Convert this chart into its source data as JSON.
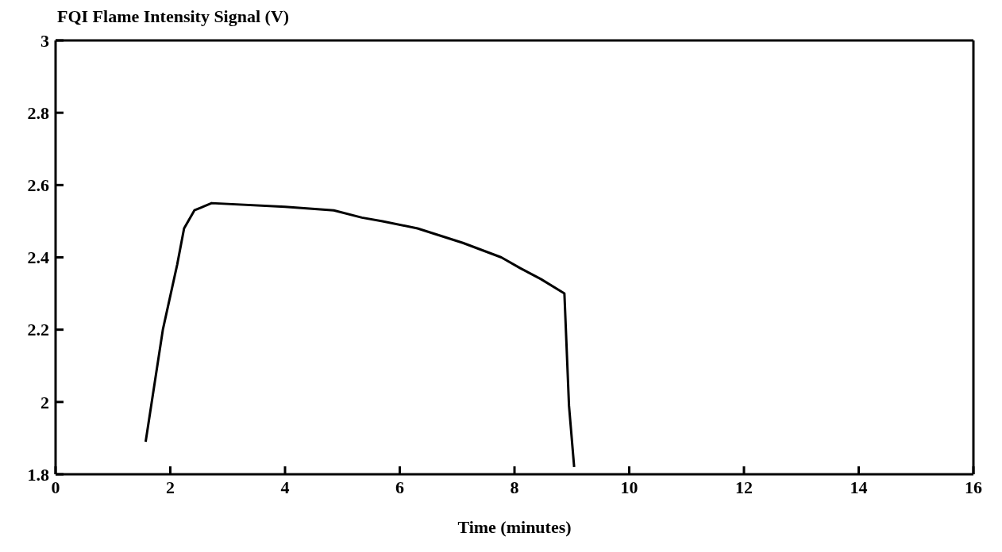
{
  "chart_data": {
    "type": "line",
    "title": "FQI Flame Intensity Signal (V)",
    "xlabel": "Time (minutes)",
    "x": [
      1.57,
      1.87,
      2.12,
      2.24,
      2.42,
      2.72,
      4.0,
      4.85,
      5.34,
      5.7,
      6.31,
      7.1,
      7.77,
      8.1,
      8.46,
      8.87,
      8.95,
      9.04
    ],
    "series": [
      {
        "color": "#000000",
        "values": [
          1.89,
          2.2,
          2.38,
          2.48,
          2.53,
          2.55,
          2.54,
          2.53,
          2.51,
          2.5,
          2.48,
          2.44,
          2.4,
          2.37,
          2.34,
          2.3,
          1.99,
          1.82
        ]
      }
    ],
    "xlim": [
      0,
      16
    ],
    "xticks": [
      0,
      2,
      4,
      6,
      8,
      10,
      12,
      14,
      16
    ],
    "ylim": [
      1.8,
      3
    ],
    "yticks": [
      1.8,
      2,
      2.2,
      2.4,
      2.6,
      2.8,
      3
    ],
    "grid": false,
    "legend": false,
    "marker": "none",
    "line_style": "solid"
  }
}
